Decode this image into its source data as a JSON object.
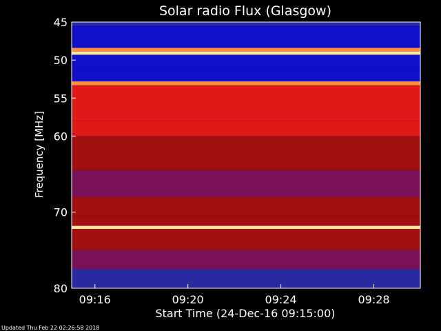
{
  "chart_data": {
    "type": "heatmap",
    "title": "Solar radio Flux (Glasgow)",
    "xlabel": "Start Time (24-Dec-16 09:15:00)",
    "ylabel": "Frequency [MHz]",
    "x_unit": "minutes after 09:15:00",
    "xlim": [
      0.0,
      15.0
    ],
    "ylim": [
      80.0,
      45.0
    ],
    "x_ticks": [
      {
        "label": "09:16",
        "value": 1
      },
      {
        "label": "09:20",
        "value": 5
      },
      {
        "label": "09:24",
        "value": 9
      },
      {
        "label": "09:28",
        "value": 13
      }
    ],
    "y_ticks": [
      {
        "label": "45",
        "value": 45
      },
      {
        "label": "50",
        "value": 50
      },
      {
        "label": "55",
        "value": 55
      },
      {
        "label": "60",
        "value": 60
      },
      {
        "label": "70",
        "value": 70
      },
      {
        "label": "80",
        "value": 80
      }
    ],
    "colormap": [
      "#000060",
      "#1010c8",
      "#2a2aa0",
      "#7a1058",
      "#a01010",
      "#e01818",
      "#ff3020",
      "#ff9040",
      "#ffe8a0"
    ],
    "bands": [
      {
        "from": 45.0,
        "to": 45.5,
        "level": 0.3
      },
      {
        "from": 45.5,
        "to": 48.4,
        "level": 0.12
      },
      {
        "from": 48.4,
        "to": 48.9,
        "level": 0.85
      },
      {
        "from": 48.9,
        "to": 49.3,
        "level": 0.98
      },
      {
        "from": 49.3,
        "to": 51.0,
        "level": 0.12
      },
      {
        "from": 51.0,
        "to": 52.8,
        "level": 0.1
      },
      {
        "from": 52.8,
        "to": 53.3,
        "level": 0.92
      },
      {
        "from": 53.3,
        "to": 58.0,
        "level": 0.66
      },
      {
        "from": 58.0,
        "to": 60.0,
        "level": 0.62
      },
      {
        "from": 60.0,
        "to": 62.0,
        "level": 0.48
      },
      {
        "from": 62.0,
        "to": 64.5,
        "level": 0.44
      },
      {
        "from": 64.5,
        "to": 68.0,
        "level": 0.38
      },
      {
        "from": 68.0,
        "to": 70.5,
        "level": 0.46
      },
      {
        "from": 70.5,
        "to": 71.8,
        "level": 0.52
      },
      {
        "from": 71.8,
        "to": 72.2,
        "level": 0.98
      },
      {
        "from": 72.2,
        "to": 75.0,
        "level": 0.5
      },
      {
        "from": 75.0,
        "to": 77.5,
        "level": 0.42
      },
      {
        "from": 77.5,
        "to": 80.0,
        "level": 0.3
      }
    ],
    "footer": "Updated Thu Feb 22 02:26:58 2018"
  }
}
